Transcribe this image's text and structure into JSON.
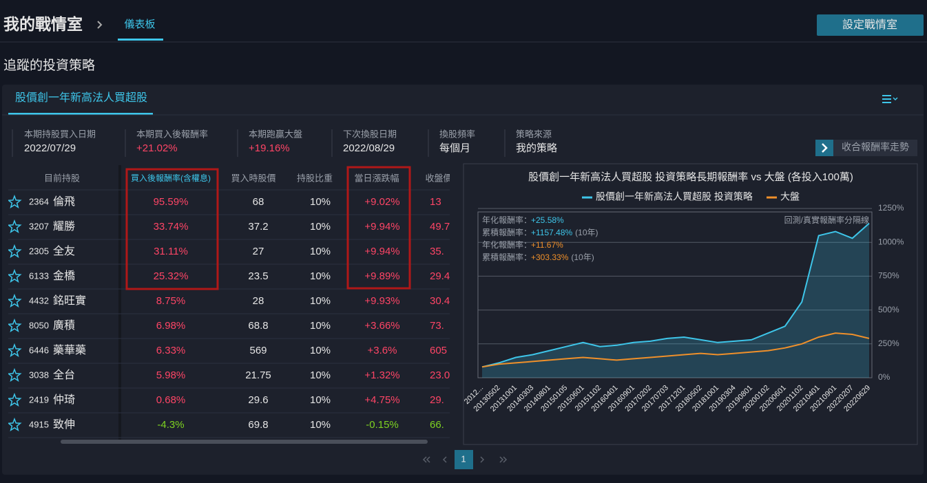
{
  "header": {
    "title": "我的戰情室",
    "tab": "儀表板",
    "button": "設定戰情室"
  },
  "section_title": "追蹤的投資策略",
  "panel": {
    "tab": "股價創一年新高法人買超股",
    "stats": [
      {
        "label": "本期持股買入日期",
        "value": "2022/07/29"
      },
      {
        "label": "本期買入後報酬率",
        "value": "+21.02%"
      },
      {
        "label": "本期跑贏大盤",
        "value": "+19.16%"
      },
      {
        "label": "下次換股日期",
        "value": "2022/08/29"
      },
      {
        "label": "換股頻率",
        "value": "每個月"
      },
      {
        "label": "策略來源",
        "value": "我的策略"
      }
    ],
    "collapse_button": "收合報酬率走勢"
  },
  "table": {
    "headers": [
      "目前持股",
      "買入後報酬率(含權息)",
      "買入時股價",
      "持股比重",
      "當日漲跌幅",
      "收盤價"
    ],
    "rows": [
      [
        "2364",
        "倫飛",
        "95.59%",
        "68",
        "10%",
        "+9.02%",
        "13"
      ],
      [
        "3207",
        "耀勝",
        "33.74%",
        "37.2",
        "10%",
        "+9.94%",
        "49.7"
      ],
      [
        "2305",
        "全友",
        "31.11%",
        "27",
        "10%",
        "+9.94%",
        "35."
      ],
      [
        "6133",
        "金橋",
        "25.32%",
        "23.5",
        "10%",
        "+9.89%",
        "29.4"
      ],
      [
        "4432",
        "銘旺實",
        "8.75%",
        "28",
        "10%",
        "+9.93%",
        "30.4"
      ],
      [
        "8050",
        "廣積",
        "6.98%",
        "68.8",
        "10%",
        "+3.66%",
        "73."
      ],
      [
        "6446",
        "藥華藥",
        "6.33%",
        "569",
        "10%",
        "+3.6%",
        "605"
      ],
      [
        "3038",
        "全台",
        "5.98%",
        "21.75",
        "10%",
        "+1.32%",
        "23.0"
      ],
      [
        "2419",
        "仲琦",
        "0.68%",
        "29.6",
        "10%",
        "+4.75%",
        "29."
      ],
      [
        "4915",
        "致伸",
        "-4.3%",
        "69.8",
        "10%",
        "-0.15%",
        "66."
      ]
    ]
  },
  "pagination": {
    "current": "1"
  },
  "chart_data": {
    "type": "line",
    "title": "股價創一年新高法人買超股 投資策略長期報酬率 vs 大盤 (各投入100萬)",
    "categories": [
      "2012...",
      "20130502",
      "20131001",
      "20140303",
      "20140801",
      "20150105",
      "20150601",
      "20151102",
      "20160401",
      "20160901",
      "20170202",
      "20170703",
      "20171201",
      "20180502",
      "20181001",
      "20190304",
      "20190801",
      "20200102",
      "20200601",
      "20201102",
      "20210401",
      "20210901",
      "20220207",
      "20220629"
    ],
    "series": [
      {
        "name": "股價創一年新高法人買超股 投資策略",
        "color": "#3ec6ea",
        "values": [
          80,
          110,
          150,
          170,
          200,
          230,
          260,
          230,
          240,
          260,
          270,
          290,
          300,
          280,
          260,
          270,
          280,
          330,
          380,
          560,
          1050,
          1080,
          1030,
          1140
        ]
      },
      {
        "name": "大盤",
        "color": "#f0902a",
        "values": [
          80,
          100,
          110,
          120,
          130,
          140,
          150,
          140,
          130,
          140,
          150,
          160,
          170,
          180,
          170,
          180,
          190,
          200,
          220,
          250,
          300,
          330,
          320,
          290
        ]
      }
    ],
    "ylim": [
      0,
      1250
    ],
    "yticks": [
      {
        "value": 0,
        "label": "0%"
      },
      {
        "value": 250,
        "label": "250%"
      },
      {
        "value": 500,
        "label": "500%"
      },
      {
        "value": 750,
        "label": "750%"
      },
      {
        "value": 1000,
        "label": "1000%"
      },
      {
        "value": 1250,
        "label": "1250%"
      }
    ],
    "grid": true,
    "annotations": [
      {
        "label": "年化報酬率：",
        "value": "+25.58%"
      },
      {
        "label": "累積報酬率：",
        "value": "+1157.48%",
        "note": "(10年)"
      },
      {
        "label": "年化報酬率：",
        "value": "+11.67%"
      },
      {
        "label": "累積報酬率：",
        "value": "+303.33%",
        "note": "(10年)"
      }
    ],
    "separator_label": "回測/真實報酬率分隔線"
  }
}
